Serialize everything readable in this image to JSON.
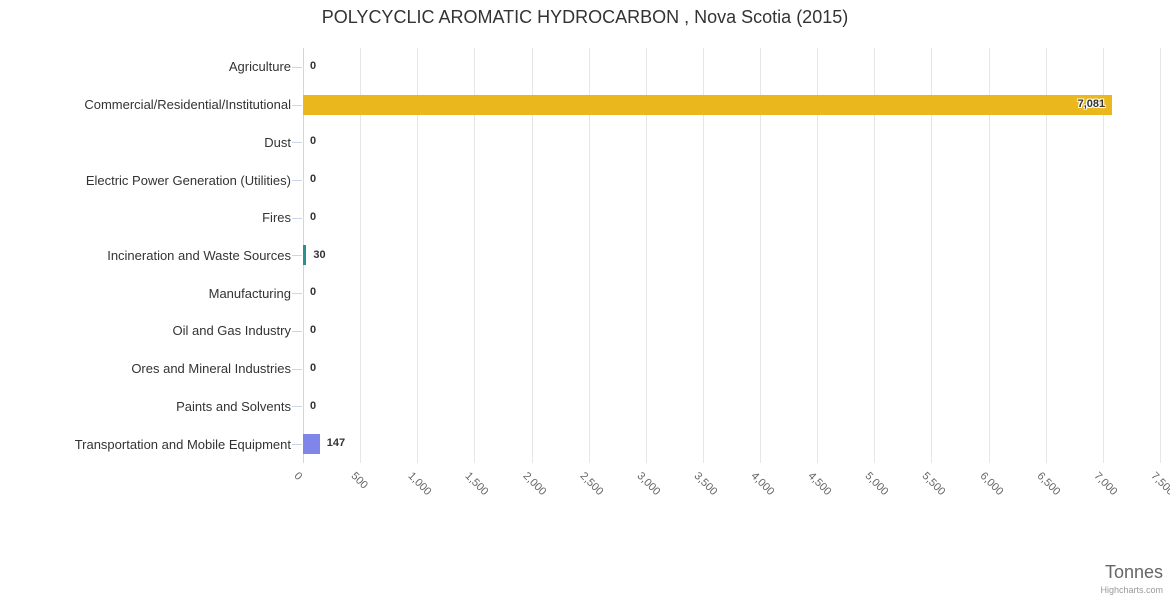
{
  "credit": "Highcharts.com",
  "colors": {
    "background": "#ffffff",
    "gridline": "#e6e6e6",
    "axis_line": "#ccd6eb",
    "category_tick": "#ccd6eb",
    "category_label": "#333333",
    "value_label": "#333333",
    "title": "#333333",
    "x_tick_label": "#666666",
    "axis_title": "#666666",
    "credit": "#999999",
    "bar_gold": "#eab71c",
    "bar_teal": "#2b908f",
    "bar_purple": "#8085e9"
  },
  "chart_data": {
    "type": "bar",
    "orientation": "horizontal",
    "title": "POLYCYCLIC AROMATIC HYDROCARBON , Nova Scotia (2015)",
    "categories": [
      "Agriculture",
      "Commercial/Residential/Institutional",
      "Dust",
      "Electric Power Generation (Utilities)",
      "Fires",
      "Incineration and Waste Sources",
      "Manufacturing",
      "Oil and Gas Industry",
      "Ores and Mineral Industries",
      "Paints and Solvents",
      "Transportation and Mobile Equipment"
    ],
    "values": [
      0,
      7081,
      0,
      0,
      0,
      30,
      0,
      0,
      0,
      0,
      147
    ],
    "value_labels": [
      "0",
      "7,081",
      "0",
      "0",
      "0",
      "30",
      "0",
      "0",
      "0",
      "0",
      "147"
    ],
    "bar_colors": [
      null,
      "#eab71c",
      null,
      null,
      null,
      "#2b908f",
      null,
      null,
      null,
      null,
      "#8085e9"
    ],
    "xlabel": "Tonnes",
    "ylabel": "",
    "xlim": [
      0,
      7500
    ],
    "x_tick_step": 500,
    "x_ticks": [
      "0",
      "500",
      "1,000",
      "1,500",
      "2,000",
      "2,500",
      "3,000",
      "3,500",
      "4,000",
      "4,500",
      "5,000",
      "5,500",
      "6,000",
      "6,500",
      "7,000",
      "7,500"
    ],
    "grid": true,
    "legend": false
  }
}
